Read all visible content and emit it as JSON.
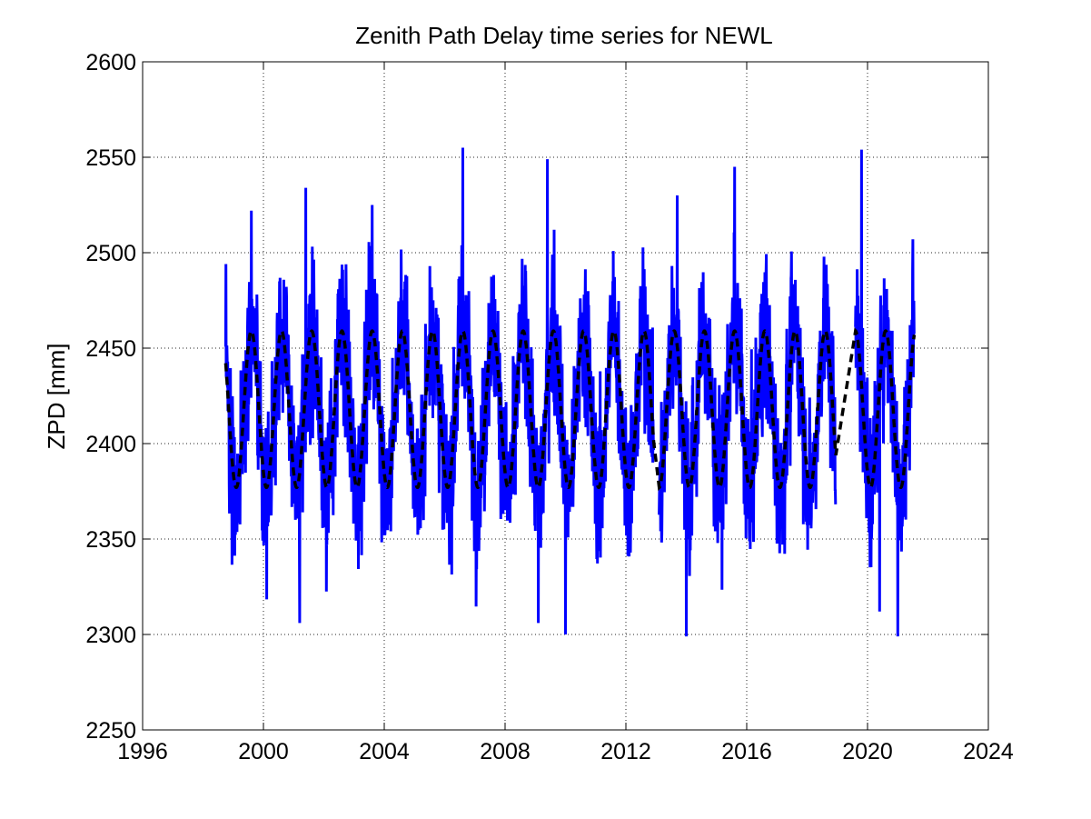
{
  "chart_data": {
    "type": "line",
    "title": "Zenith Path Delay time series for NEWL",
    "xlabel": "",
    "ylabel": "ZPD [mm]",
    "xlim": [
      1996,
      2024
    ],
    "ylim": [
      2250,
      2600
    ],
    "xticks": [
      1996,
      2000,
      2004,
      2008,
      2012,
      2016,
      2020,
      2024
    ],
    "yticks": [
      2250,
      2300,
      2350,
      2400,
      2450,
      2500,
      2550,
      2600
    ],
    "grid": true,
    "series_colors": {
      "observations": "#0000ff",
      "seasonal_fit": "#000000"
    },
    "data_start": 1998.75,
    "data_end": 2021.55,
    "gaps": [
      [
        2012.92,
        2013.1
      ],
      [
        2018.95,
        2019.6
      ]
    ],
    "observation_range": {
      "min": 2299,
      "max": 2555
    },
    "observation_peaks": [
      {
        "x": 1999.6,
        "y": 2522
      },
      {
        "x": 2001.4,
        "y": 2534
      },
      {
        "x": 2003.6,
        "y": 2525
      },
      {
        "x": 2006.6,
        "y": 2555
      },
      {
        "x": 2009.4,
        "y": 2549
      },
      {
        "x": 2013.7,
        "y": 2530
      },
      {
        "x": 2015.6,
        "y": 2545
      },
      {
        "x": 2019.8,
        "y": 2554
      },
      {
        "x": 2021.5,
        "y": 2507
      }
    ],
    "observation_troughs": [
      {
        "x": 2001.2,
        "y": 2306
      },
      {
        "x": 2009.1,
        "y": 2306
      },
      {
        "x": 2010.0,
        "y": 2300
      },
      {
        "x": 2014.0,
        "y": 2299
      },
      {
        "x": 2020.4,
        "y": 2312
      },
      {
        "x": 2021.0,
        "y": 2299
      }
    ],
    "seasonal_fit": {
      "mean": 2418,
      "amplitude": 41,
      "period_years": 1,
      "peak_phase_year_fraction": 0.6,
      "max": 2460,
      "min": 2377
    }
  }
}
